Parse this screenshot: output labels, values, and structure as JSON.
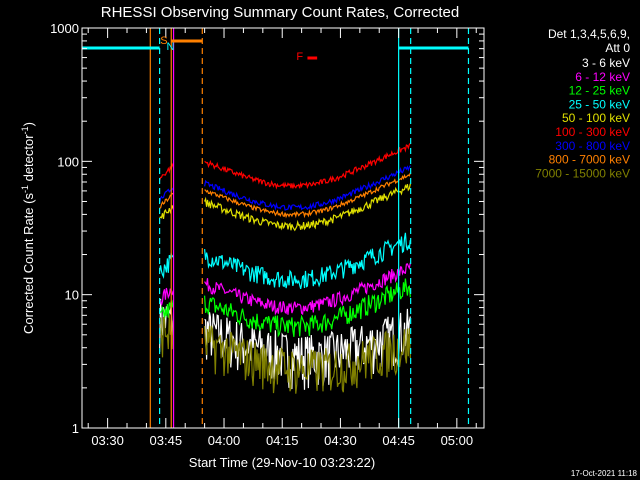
{
  "chart_data": {
    "type": "line",
    "title": "RHESSI Observing Summary Count Rates, Corrected",
    "xlabel": "Start Time (29-Nov-10 03:23:22)",
    "ylabel_main": "Corrected Count Rate (s",
    "ylabel_sup1": "-1",
    "ylabel_mid": " detector",
    "ylabel_sup2": "-1",
    "ylabel_end": ")",
    "yscale": "log",
    "ylim": [
      1,
      1000
    ],
    "y_ticks": [
      {
        "value": 1,
        "label": "1"
      },
      {
        "value": 10,
        "label": "10"
      },
      {
        "value": 100,
        "label": "100"
      },
      {
        "value": 1000,
        "label": "1000"
      }
    ],
    "xlim_minutes": [
      203.4,
      307
    ],
    "x_ticks": [
      {
        "minutes": 210,
        "label": "03:30"
      },
      {
        "minutes": 225,
        "label": "03:45"
      },
      {
        "minutes": 240,
        "label": "04:00"
      },
      {
        "minutes": 255,
        "label": "04:15"
      },
      {
        "minutes": 270,
        "label": "04:30"
      },
      {
        "minutes": 285,
        "label": "04:45"
      },
      {
        "minutes": 300,
        "label": "05:00"
      }
    ],
    "legend_header": [
      "Det 1,3,4,5,6,9,",
      "Att 0"
    ],
    "legend_position": "right",
    "series": [
      {
        "name": "3 - 6 keV",
        "color": "#ffffff",
        "base": 5,
        "noise": 0.45
      },
      {
        "name": "6 - 12 keV",
        "color": "#ff00ff",
        "base": 11,
        "noise": 0.12
      },
      {
        "name": "12 - 25 keV",
        "color": "#00ff00",
        "base": 8,
        "noise": 0.18
      },
      {
        "name": "25 - 50 keV",
        "color": "#00ffff",
        "base": 18,
        "noise": 0.16
      },
      {
        "name": "50 - 100 keV",
        "color": "#e0e000",
        "base": 45,
        "noise": 0.07
      },
      {
        "name": "100 - 300 keV",
        "color": "#ff0000",
        "base": 90,
        "noise": 0.05
      },
      {
        "name": "300 - 800 keV",
        "color": "#0000ff",
        "base": 62,
        "noise": 0.05
      },
      {
        "name": "800 - 7000 keV",
        "color": "#ff8000",
        "base": 55,
        "noise": 0.04
      },
      {
        "name": "7000 - 15000 keV",
        "color": "#808000",
        "base": 4,
        "noise": 0.4
      }
    ],
    "segments": [
      {
        "start_minutes": 223.4,
        "end_minutes": 227.0
      },
      {
        "start_minutes": 235.0,
        "end_minutes": 288.0
      }
    ],
    "vertical_markers": [
      {
        "minutes": 223.4,
        "color": "#00ffff",
        "style": "dashed"
      },
      {
        "minutes": 226.4,
        "color": "#ff8000",
        "style": "solid"
      },
      {
        "minutes": 227.0,
        "color": "#ff00ff",
        "style": "solid"
      },
      {
        "minutes": 234.4,
        "color": "#ff8000",
        "style": "dashed"
      },
      {
        "minutes": 285.0,
        "color": "#00ffff",
        "style": "solid"
      },
      {
        "minutes": 288.1,
        "color": "#00ffff",
        "style": "dashed"
      },
      {
        "minutes": 303.0,
        "color": "#00ffff",
        "style": "dashed"
      },
      {
        "minutes": 221.0,
        "color": "#ff8000",
        "style": "solid"
      }
    ],
    "annotations": [
      {
        "label": "S",
        "color": "#ff8000"
      },
      {
        "label": "N",
        "color": "#00ffff"
      },
      {
        "label": "F",
        "color": "#ff0000"
      }
    ],
    "footer_stamp": "17-Oct-2021 11:18"
  }
}
